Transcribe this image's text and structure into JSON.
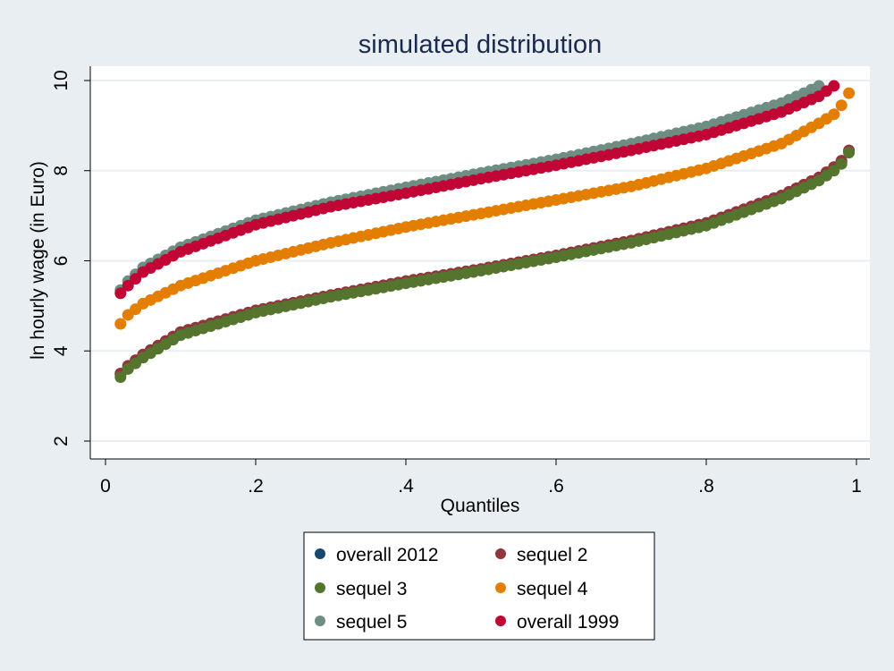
{
  "colors": {
    "background": "#e8eef2",
    "plot_background": "#ffffff",
    "grid": "#e8eef2",
    "axis": "#000000"
  },
  "chart_data": {
    "type": "scatter",
    "title": "simulated distribution",
    "xlabel": "Quantiles",
    "ylabel": "ln hourly wage (in Euro)",
    "xlim": [
      0,
      1
    ],
    "ylim": [
      2,
      10
    ],
    "xticks": [
      0,
      0.2,
      0.4,
      0.6,
      0.8,
      1
    ],
    "xtick_labels": [
      "0",
      ".2",
      ".4",
      ".6",
      ".8",
      "1"
    ],
    "yticks": [
      2,
      4,
      6,
      8,
      10
    ],
    "ytick_labels": [
      "2",
      "4",
      "6",
      "8",
      "10"
    ],
    "grid": true,
    "legend_position": "bottom",
    "series": [
      {
        "name": "overall 2012",
        "color": "#1a476f",
        "x": [
          0.02,
          0.03,
          0.05,
          0.1,
          0.2,
          0.3,
          0.4,
          0.5,
          0.6,
          0.7,
          0.8,
          0.9,
          0.95,
          0.97,
          0.98,
          0.99
        ],
        "y": [
          3.48,
          3.65,
          3.9,
          4.4,
          4.88,
          5.22,
          5.53,
          5.8,
          6.1,
          6.42,
          6.8,
          7.4,
          7.8,
          8.05,
          8.2,
          8.42
        ]
      },
      {
        "name": "sequel 2",
        "color": "#90353b",
        "x": [
          0.02,
          0.03,
          0.05,
          0.1,
          0.2,
          0.3,
          0.4,
          0.5,
          0.6,
          0.7,
          0.8,
          0.9,
          0.95,
          0.97,
          0.98,
          0.99
        ],
        "y": [
          3.5,
          3.67,
          3.92,
          4.42,
          4.9,
          5.24,
          5.55,
          5.82,
          6.12,
          6.45,
          6.84,
          7.45,
          7.85,
          8.08,
          8.22,
          8.45
        ]
      },
      {
        "name": "sequel 3",
        "color": "#55752f",
        "x": [
          0.02,
          0.03,
          0.05,
          0.1,
          0.2,
          0.3,
          0.4,
          0.5,
          0.6,
          0.7,
          0.8,
          0.9,
          0.95,
          0.97,
          0.98,
          0.99
        ],
        "y": [
          3.42,
          3.6,
          3.85,
          4.35,
          4.85,
          5.2,
          5.5,
          5.78,
          6.08,
          6.4,
          6.78,
          7.38,
          7.78,
          8.0,
          8.15,
          8.4
        ]
      },
      {
        "name": "sequel 4",
        "color": "#e37e00",
        "x": [
          0.02,
          0.03,
          0.05,
          0.1,
          0.2,
          0.3,
          0.4,
          0.5,
          0.6,
          0.7,
          0.8,
          0.9,
          0.95,
          0.97,
          0.98,
          0.99
        ],
        "y": [
          4.6,
          4.8,
          5.05,
          5.45,
          6.0,
          6.4,
          6.75,
          7.05,
          7.35,
          7.65,
          8.05,
          8.6,
          9.05,
          9.25,
          9.45,
          9.72
        ]
      },
      {
        "name": "sequel 5",
        "color": "#6e8e84",
        "x": [
          0.02,
          0.03,
          0.05,
          0.1,
          0.2,
          0.3,
          0.4,
          0.5,
          0.6,
          0.7,
          0.8,
          0.9,
          0.93,
          0.95
        ],
        "y": [
          5.35,
          5.55,
          5.85,
          6.3,
          6.9,
          7.3,
          7.63,
          7.95,
          8.25,
          8.6,
          8.98,
          9.5,
          9.72,
          9.88
        ]
      },
      {
        "name": "overall 1999",
        "color": "#c10534",
        "x": [
          0.02,
          0.03,
          0.05,
          0.1,
          0.2,
          0.3,
          0.4,
          0.5,
          0.6,
          0.7,
          0.8,
          0.9,
          0.95,
          0.97
        ],
        "y": [
          5.28,
          5.45,
          5.75,
          6.2,
          6.8,
          7.2,
          7.5,
          7.82,
          8.12,
          8.45,
          8.8,
          9.3,
          9.65,
          9.88
        ]
      }
    ]
  }
}
